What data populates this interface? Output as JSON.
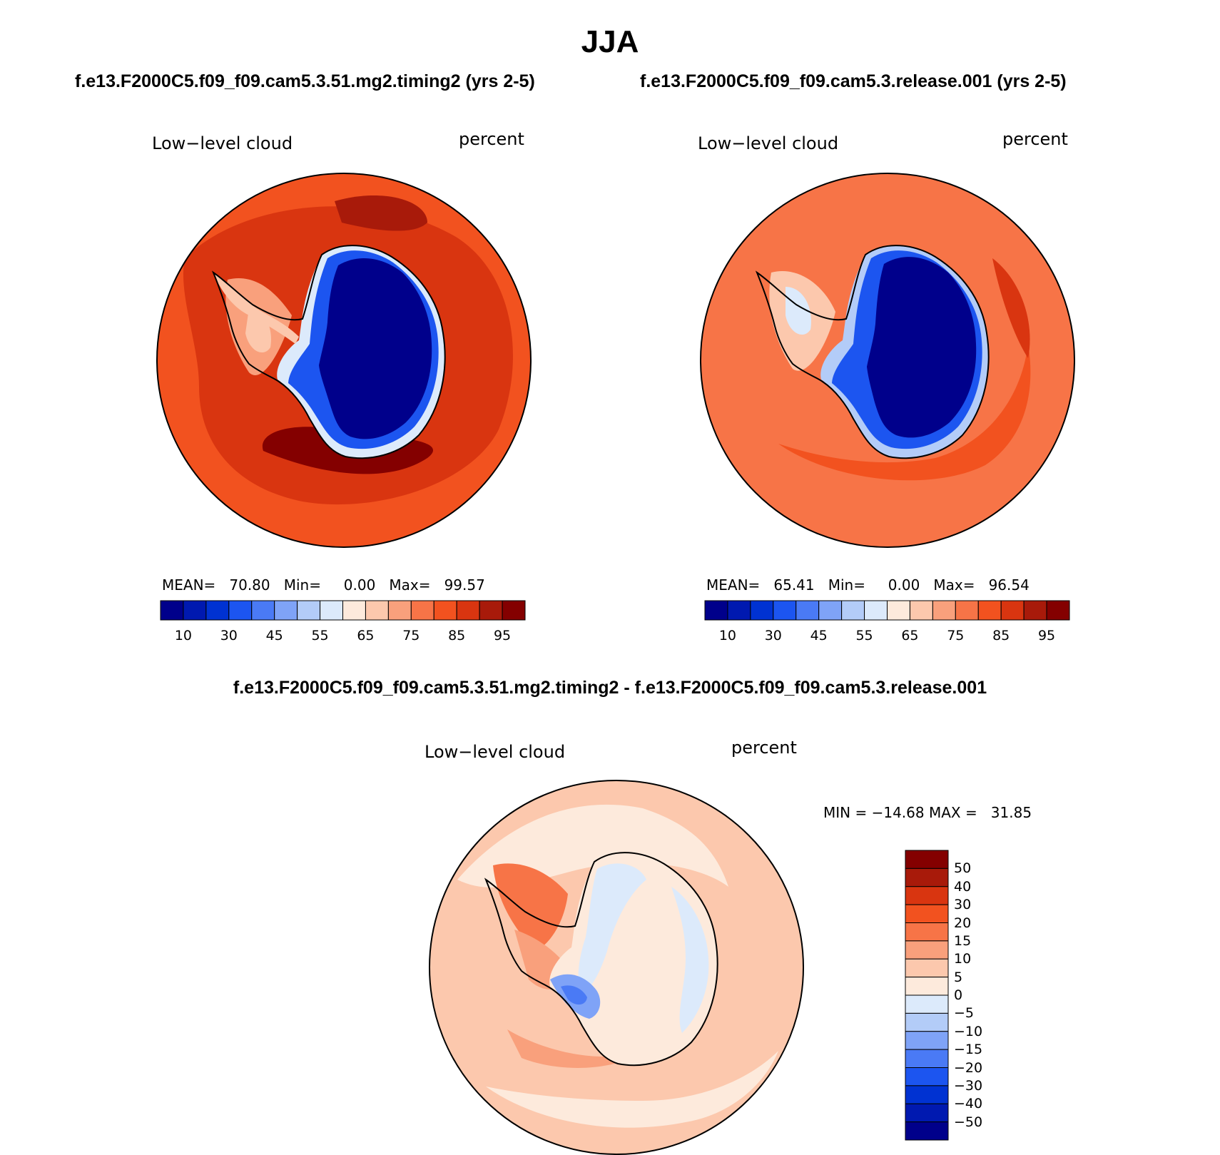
{
  "figure": {
    "title": "JJA",
    "left_case": "f.e13.F2000C5.f09_f09.cam5.3.51.mg2.timing2 (yrs 2-5)",
    "right_case": "f.e13.F2000C5.f09_f09.cam5.3.release.001 (yrs 2-5)",
    "diff_title": "f.e13.F2000C5.f09_f09.cam5.3.51.mg2.timing2 - f.e13.F2000C5.f09_f09.cam5.3.release.001"
  },
  "panels": {
    "left": {
      "variable": "Low−level cloud",
      "units": "percent",
      "mean_label": "MEAN=",
      "mean": "70.80",
      "min_label": "Min=",
      "min": "0.00",
      "max_label": "Max=",
      "max": "99.57"
    },
    "right": {
      "variable": "Low−level cloud",
      "units": "percent",
      "mean_label": "MEAN=",
      "mean": "65.41",
      "min_label": "Min=",
      "min": "0.00",
      "max_label": "Max=",
      "max": "96.54"
    },
    "diff": {
      "variable": "Low−level cloud",
      "units": "percent",
      "minmax": "MIN = −14.68 MAX =   31.85"
    }
  },
  "colorbars": {
    "abs_colors": [
      "#00008b",
      "#0019b0",
      "#0032d2",
      "#1c55f0",
      "#4a7af5",
      "#7fa3f7",
      "#b3ccf8",
      "#dceafb",
      "#fdeadc",
      "#fcc8ad",
      "#f9a07c",
      "#f77447",
      "#f2521f",
      "#d93510",
      "#a81a0a",
      "#840000"
    ],
    "abs_ticks": [
      "10",
      "30",
      "45",
      "55",
      "65",
      "75",
      "85",
      "95"
    ],
    "diff_colors": [
      "#00008b",
      "#0019b0",
      "#0032d2",
      "#1c55f0",
      "#4a7af5",
      "#7fa3f7",
      "#b3ccf8",
      "#dceafb",
      "#fdeadc",
      "#fcc8ad",
      "#f9a07c",
      "#f77447",
      "#f2521f",
      "#d93510",
      "#a81a0a",
      "#840000"
    ],
    "diff_ticks": [
      "50",
      "40",
      "30",
      "20",
      "15",
      "10",
      "5",
      "0",
      "−5",
      "−10",
      "−15",
      "−20",
      "−30",
      "−40",
      "−50"
    ]
  }
}
